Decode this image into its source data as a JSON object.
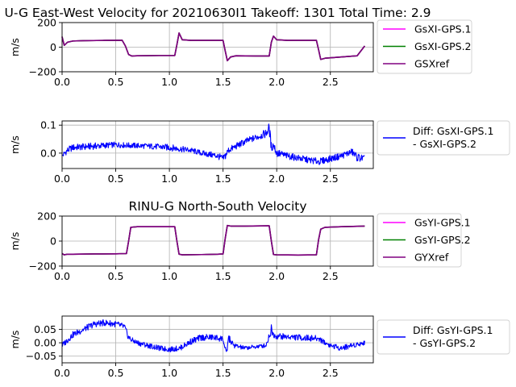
{
  "chart_data": [
    {
      "type": "line",
      "title": "U-G East-West Velocity for 20210630I1 Takeoff: 1301 Total Time: 2.9",
      "xlabel": "",
      "ylabel": "m/s",
      "xlim": [
        0,
        2.9
      ],
      "ylim": [
        -200,
        200
      ],
      "xticks": [
        0.0,
        0.5,
        1.0,
        1.5,
        2.0,
        2.5
      ],
      "xtick_labels": [
        "0.0",
        "0.5",
        "1.0",
        "1.5",
        "2.0",
        "2.5"
      ],
      "yticks": [
        -200,
        0,
        200
      ],
      "ytick_labels": [
        "−200",
        "0",
        "200"
      ],
      "grid": true,
      "legend_position": "outside-right",
      "series": [
        {
          "name": "GsXI-GPS.1",
          "color": "#ff00ff",
          "x": [
            0,
            0.02,
            0.05,
            0.1,
            0.2,
            0.4,
            0.56,
            0.59,
            0.62,
            0.65,
            0.7,
            0.9,
            1.05,
            1.07,
            1.09,
            1.12,
            1.2,
            1.4,
            1.5,
            1.52,
            1.54,
            1.57,
            1.62,
            1.8,
            1.93,
            1.95,
            1.97,
            2.0,
            2.1,
            2.3,
            2.37,
            2.39,
            2.41,
            2.45,
            2.6,
            2.75,
            2.82
          ],
          "y": [
            85,
            15,
            40,
            50,
            53,
            55,
            56,
            10,
            -60,
            -72,
            -70,
            -68,
            -68,
            20,
            115,
            60,
            55,
            55,
            55,
            -30,
            -110,
            -80,
            -70,
            -72,
            -72,
            40,
            90,
            60,
            55,
            55,
            55,
            -20,
            -100,
            -90,
            -80,
            -70,
            10
          ]
        },
        {
          "name": "GsXI-GPS.2",
          "color": "#008000",
          "x": [
            0,
            0.02,
            0.05,
            0.1,
            0.2,
            0.4,
            0.56,
            0.59,
            0.62,
            0.65,
            0.7,
            0.9,
            1.05,
            1.07,
            1.09,
            1.12,
            1.2,
            1.4,
            1.5,
            1.52,
            1.54,
            1.57,
            1.62,
            1.8,
            1.93,
            1.95,
            1.97,
            2.0,
            2.1,
            2.3,
            2.37,
            2.39,
            2.41,
            2.45,
            2.6,
            2.75,
            2.82
          ],
          "y": [
            85,
            15,
            40,
            50,
            53,
            55,
            56,
            10,
            -60,
            -72,
            -70,
            -68,
            -68,
            20,
            115,
            60,
            55,
            55,
            55,
            -30,
            -110,
            -80,
            -70,
            -72,
            -72,
            40,
            90,
            60,
            55,
            55,
            55,
            -20,
            -100,
            -90,
            -80,
            -70,
            10
          ]
        },
        {
          "name": "GSXref",
          "color": "#800080",
          "x": [
            0,
            0.02,
            0.05,
            0.1,
            0.2,
            0.4,
            0.56,
            0.59,
            0.62,
            0.65,
            0.7,
            0.9,
            1.05,
            1.07,
            1.09,
            1.12,
            1.2,
            1.4,
            1.5,
            1.52,
            1.54,
            1.57,
            1.62,
            1.8,
            1.93,
            1.95,
            1.97,
            2.0,
            2.1,
            2.3,
            2.37,
            2.39,
            2.41,
            2.45,
            2.6,
            2.75,
            2.82
          ],
          "y": [
            85,
            15,
            40,
            50,
            53,
            55,
            56,
            10,
            -60,
            -72,
            -70,
            -68,
            -68,
            20,
            115,
            60,
            55,
            55,
            55,
            -30,
            -110,
            -80,
            -70,
            -72,
            -72,
            40,
            90,
            60,
            55,
            55,
            55,
            -20,
            -100,
            -90,
            -80,
            -70,
            10
          ]
        }
      ]
    },
    {
      "type": "line",
      "title": "",
      "xlabel": "",
      "ylabel": "m/s",
      "xlim": [
        0,
        2.9
      ],
      "ylim": [
        -0.055,
        0.115
      ],
      "xticks": [
        0.0,
        0.5,
        1.0,
        1.5,
        2.0,
        2.5
      ],
      "xtick_labels": [
        "0.0",
        "0.5",
        "1.0",
        "1.5",
        "2.0",
        "2.5"
      ],
      "yticks": [
        0.0,
        0.1
      ],
      "ytick_labels": [
        "0.0",
        "0.1"
      ],
      "grid": true,
      "legend_position": "outside-right",
      "series": [
        {
          "name": "Diff: GsXI-GPS.1\n- GsXI-GPS.2",
          "color": "#0000ff",
          "x": [
            0,
            0.05,
            0.1,
            0.3,
            0.5,
            0.6,
            0.8,
            1.0,
            1.2,
            1.3,
            1.45,
            1.5,
            1.52,
            1.55,
            1.6,
            1.7,
            1.8,
            1.9,
            1.93,
            1.95,
            1.97,
            2.0,
            2.1,
            2.3,
            2.4,
            2.5,
            2.6,
            2.7,
            2.75,
            2.82
          ],
          "y": [
            -0.01,
            0.01,
            0.02,
            0.025,
            0.03,
            0.028,
            0.025,
            0.02,
            0.01,
            0.0,
            -0.01,
            -0.02,
            -0.01,
            0.01,
            0.02,
            0.04,
            0.055,
            0.07,
            0.09,
            0.02,
            0.03,
            0.0,
            -0.01,
            -0.025,
            -0.03,
            -0.02,
            -0.01,
            0.005,
            -0.015,
            -0.02
          ],
          "amplitude": [
            0.01,
            0.012,
            0.012,
            0.012,
            0.01,
            0.01,
            0.01,
            0.012,
            0.01,
            0.01,
            0.012,
            0.012,
            0.015,
            0.012,
            0.012,
            0.012,
            0.012,
            0.015,
            0.02,
            0.02,
            0.015,
            0.015,
            0.012,
            0.012,
            0.012,
            0.012,
            0.012,
            0.012,
            0.015,
            0.012
          ]
        }
      ]
    },
    {
      "type": "line",
      "title": "RINU-G North-South Velocity",
      "xlabel": "",
      "ylabel": "m/s",
      "xlim": [
        0,
        2.9
      ],
      "ylim": [
        -200,
        200
      ],
      "xticks": [
        0.0,
        0.5,
        1.0,
        1.5,
        2.0,
        2.5
      ],
      "xtick_labels": [
        "0.0",
        "0.5",
        "1.0",
        "1.5",
        "2.0",
        "2.5"
      ],
      "yticks": [
        -200,
        0,
        200
      ],
      "ytick_labels": [
        "−200",
        "0",
        "200"
      ],
      "grid": true,
      "legend_position": "outside-right",
      "series": [
        {
          "name": "GsYI-GPS.1",
          "color": "#ff00ff",
          "x": [
            0,
            0.02,
            0.05,
            0.1,
            0.3,
            0.5,
            0.6,
            0.62,
            0.64,
            0.7,
            0.9,
            1.05,
            1.07,
            1.09,
            1.12,
            1.3,
            1.45,
            1.5,
            1.52,
            1.54,
            1.57,
            1.7,
            1.93,
            1.95,
            1.97,
            2.0,
            2.2,
            2.37,
            2.39,
            2.41,
            2.45,
            2.6,
            2.75,
            2.82
          ],
          "y": [
            -100,
            -110,
            -105,
            -105,
            -103,
            -102,
            -100,
            0,
            110,
            115,
            115,
            115,
            0,
            -105,
            -110,
            -108,
            -105,
            -103,
            20,
            125,
            120,
            120,
            122,
            0,
            -108,
            -110,
            -112,
            -110,
            10,
            95,
            110,
            115,
            118,
            120
          ]
        },
        {
          "name": "GsYI-GPS.2",
          "color": "#008000",
          "x": [
            0,
            0.02,
            0.05,
            0.1,
            0.3,
            0.5,
            0.6,
            0.62,
            0.64,
            0.7,
            0.9,
            1.05,
            1.07,
            1.09,
            1.12,
            1.3,
            1.45,
            1.5,
            1.52,
            1.54,
            1.57,
            1.7,
            1.93,
            1.95,
            1.97,
            2.0,
            2.2,
            2.37,
            2.39,
            2.41,
            2.45,
            2.6,
            2.75,
            2.82
          ],
          "y": [
            -100,
            -110,
            -105,
            -105,
            -103,
            -102,
            -100,
            0,
            110,
            115,
            115,
            115,
            0,
            -105,
            -110,
            -108,
            -105,
            -103,
            20,
            125,
            120,
            120,
            122,
            0,
            -108,
            -110,
            -112,
            -110,
            10,
            95,
            110,
            115,
            118,
            120
          ]
        },
        {
          "name": "GYXref",
          "color": "#800080",
          "x": [
            0,
            0.02,
            0.05,
            0.1,
            0.3,
            0.5,
            0.6,
            0.62,
            0.64,
            0.7,
            0.9,
            1.05,
            1.07,
            1.09,
            1.12,
            1.3,
            1.45,
            1.5,
            1.52,
            1.54,
            1.57,
            1.7,
            1.93,
            1.95,
            1.97,
            2.0,
            2.2,
            2.37,
            2.39,
            2.41,
            2.45,
            2.6,
            2.75,
            2.82
          ],
          "y": [
            -100,
            -110,
            -105,
            -105,
            -103,
            -102,
            -100,
            0,
            110,
            115,
            115,
            115,
            0,
            -105,
            -110,
            -108,
            -105,
            -103,
            20,
            125,
            120,
            120,
            122,
            0,
            -108,
            -110,
            -112,
            -110,
            10,
            95,
            110,
            115,
            118,
            120
          ]
        }
      ]
    },
    {
      "type": "line",
      "title": "",
      "xlabel": "",
      "ylabel": "m/s",
      "xlim": [
        0,
        2.9
      ],
      "ylim": [
        -0.075,
        0.1
      ],
      "xticks": [
        0.0,
        0.5,
        1.0,
        1.5,
        2.0,
        2.5
      ],
      "xtick_labels": [
        "0.0",
        "0.5",
        "1.0",
        "1.5",
        "2.0",
        "2.5"
      ],
      "yticks": [
        -0.05,
        0.0,
        0.05
      ],
      "ytick_labels": [
        "−0.05",
        "0.00",
        "0.05"
      ],
      "grid": true,
      "legend_position": "outside-right",
      "series": [
        {
          "name": "Diff: GsYI-GPS.1\n- GsYI-GPS.2",
          "color": "#0000ff",
          "x": [
            0,
            0.05,
            0.1,
            0.2,
            0.3,
            0.4,
            0.5,
            0.58,
            0.6,
            0.62,
            0.65,
            0.7,
            0.8,
            0.9,
            1.0,
            1.1,
            1.2,
            1.3,
            1.4,
            1.5,
            1.53,
            1.55,
            1.58,
            1.6,
            1.7,
            1.8,
            1.9,
            1.95,
            1.97,
            2.0,
            2.2,
            2.4,
            2.45,
            2.5,
            2.6,
            2.7,
            2.82
          ],
          "y": [
            -0.01,
            0.01,
            0.03,
            0.05,
            0.07,
            0.075,
            0.07,
            0.06,
            0.04,
            0.02,
            0.01,
            0.0,
            -0.01,
            -0.02,
            -0.025,
            -0.02,
            0.005,
            0.02,
            0.02,
            0.015,
            -0.05,
            0.02,
            0.0,
            -0.01,
            -0.02,
            -0.015,
            -0.01,
            0.05,
            0.03,
            0.025,
            0.02,
            0.015,
            0.0,
            -0.01,
            -0.02,
            -0.01,
            0.0
          ],
          "amplitude": [
            0.01,
            0.012,
            0.012,
            0.012,
            0.012,
            0.012,
            0.012,
            0.012,
            0.012,
            0.012,
            0.01,
            0.01,
            0.01,
            0.01,
            0.01,
            0.01,
            0.012,
            0.012,
            0.012,
            0.012,
            0.02,
            0.015,
            0.012,
            0.01,
            0.008,
            0.008,
            0.008,
            0.02,
            0.012,
            0.012,
            0.012,
            0.012,
            0.01,
            0.01,
            0.01,
            0.01,
            0.008
          ]
        }
      ]
    }
  ]
}
